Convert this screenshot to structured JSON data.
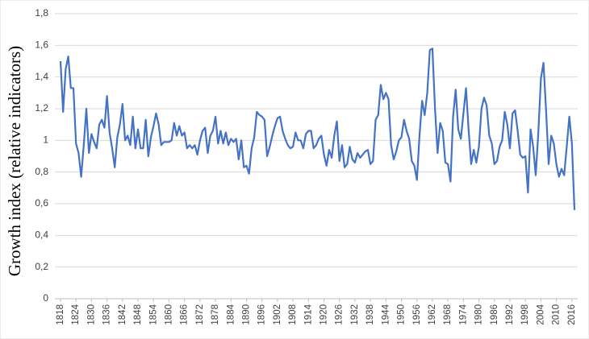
{
  "chart_data": {
    "type": "line",
    "y_label": "Growth index (relative indicators)",
    "x": [
      1818,
      1819,
      1820,
      1821,
      1822,
      1823,
      1824,
      1825,
      1826,
      1827,
      1828,
      1829,
      1830,
      1831,
      1832,
      1833,
      1834,
      1835,
      1836,
      1837,
      1838,
      1839,
      1840,
      1841,
      1842,
      1843,
      1844,
      1845,
      1846,
      1847,
      1848,
      1849,
      1850,
      1851,
      1852,
      1853,
      1854,
      1855,
      1856,
      1857,
      1858,
      1859,
      1860,
      1861,
      1862,
      1863,
      1864,
      1865,
      1866,
      1867,
      1868,
      1869,
      1870,
      1871,
      1872,
      1873,
      1874,
      1875,
      1876,
      1877,
      1878,
      1879,
      1880,
      1881,
      1882,
      1883,
      1884,
      1885,
      1886,
      1887,
      1888,
      1889,
      1890,
      1891,
      1892,
      1893,
      1894,
      1895,
      1896,
      1897,
      1898,
      1899,
      1900,
      1901,
      1902,
      1903,
      1904,
      1905,
      1906,
      1907,
      1908,
      1909,
      1910,
      1911,
      1912,
      1913,
      1914,
      1915,
      1916,
      1917,
      1918,
      1919,
      1920,
      1921,
      1922,
      1923,
      1924,
      1925,
      1926,
      1927,
      1928,
      1929,
      1930,
      1931,
      1932,
      1933,
      1934,
      1935,
      1936,
      1937,
      1938,
      1939,
      1940,
      1941,
      1942,
      1943,
      1944,
      1945,
      1946,
      1947,
      1948,
      1949,
      1950,
      1951,
      1952,
      1953,
      1954,
      1955,
      1956,
      1957,
      1958,
      1959,
      1960,
      1961,
      1962,
      1963,
      1964,
      1965,
      1966,
      1967,
      1968,
      1969,
      1970,
      1971,
      1972,
      1973,
      1974,
      1975,
      1976,
      1977,
      1978,
      1979,
      1980,
      1981,
      1982,
      1983,
      1984,
      1985,
      1986,
      1987,
      1988,
      1989,
      1990,
      1991,
      1992,
      1993,
      1994,
      1995,
      1996,
      1997,
      1998,
      1999,
      2000,
      2001,
      2002,
      2003,
      2004,
      2005,
      2006,
      2007,
      2008,
      2009,
      2010,
      2011,
      2012,
      2013,
      2014,
      2015,
      2016,
      2017
    ],
    "series": [
      {
        "name": "Growth index",
        "color": "#4472c4",
        "values": [
          1.5,
          1.18,
          1.45,
          1.53,
          1.33,
          1.33,
          0.98,
          0.92,
          0.77,
          0.97,
          1.2,
          0.92,
          1.04,
          0.99,
          0.95,
          1.1,
          1.13,
          1.08,
          1.28,
          1.05,
          0.95,
          0.83,
          1.02,
          1.1,
          1.23,
          1.0,
          1.03,
          0.97,
          1.15,
          0.95,
          1.07,
          0.95,
          0.95,
          1.13,
          0.9,
          1.02,
          1.09,
          1.17,
          1.1,
          0.97,
          0.99,
          0.99,
          0.99,
          1.0,
          1.11,
          1.03,
          1.09,
          1.03,
          1.05,
          0.95,
          0.97,
          0.95,
          0.97,
          0.91,
          1.0,
          1.06,
          1.08,
          0.92,
          1.03,
          1.06,
          1.15,
          0.98,
          1.06,
          0.98,
          1.05,
          0.97,
          1.01,
          0.99,
          1.01,
          0.88,
          1.0,
          0.83,
          0.84,
          0.79,
          0.95,
          1.02,
          1.18,
          1.16,
          1.15,
          1.13,
          0.9,
          0.96,
          1.03,
          1.09,
          1.14,
          1.15,
          1.06,
          1.01,
          0.97,
          0.95,
          0.96,
          1.05,
          1.0,
          1.0,
          0.95,
          1.04,
          1.06,
          1.06,
          0.95,
          0.97,
          1.01,
          1.03,
          0.91,
          0.84,
          0.94,
          0.89,
          1.03,
          1.12,
          0.87,
          0.97,
          0.83,
          0.85,
          0.96,
          0.88,
          0.86,
          0.92,
          0.89,
          0.91,
          0.93,
          0.94,
          0.85,
          0.87,
          1.13,
          1.16,
          1.35,
          1.26,
          1.3,
          1.26,
          0.97,
          0.88,
          0.93,
          1.0,
          1.02,
          1.13,
          1.06,
          1.01,
          0.87,
          0.84,
          0.75,
          1.03,
          1.25,
          1.16,
          1.3,
          1.57,
          1.58,
          1.2,
          0.92,
          1.11,
          1.06,
          0.86,
          0.85,
          0.74,
          1.15,
          1.32,
          1.07,
          1.01,
          1.17,
          1.33,
          1.07,
          0.85,
          0.94,
          0.86,
          0.96,
          1.2,
          1.27,
          1.22,
          1.03,
          0.98,
          0.85,
          0.87,
          0.96,
          1.0,
          1.18,
          1.1,
          0.95,
          1.17,
          1.19,
          1.06,
          0.91,
          0.89,
          0.9,
          0.67,
          1.07,
          0.96,
          0.78,
          1.05,
          1.39,
          1.49,
          1.19,
          0.85,
          1.03,
          0.98,
          0.85,
          0.77,
          0.82,
          0.78,
          0.96,
          1.15,
          0.98,
          0.56
        ]
      }
    ],
    "xlim": [
      1818,
      2017
    ],
    "xticks": [
      1818,
      1824,
      1830,
      1836,
      1842,
      1848,
      1854,
      1860,
      1866,
      1872,
      1878,
      1884,
      1890,
      1896,
      1902,
      1908,
      1914,
      1920,
      1926,
      1932,
      1938,
      1944,
      1950,
      1956,
      1962,
      1968,
      1974,
      1980,
      1986,
      1992,
      1998,
      2004,
      2010,
      2016
    ],
    "ylim": [
      0,
      1.8
    ],
    "yticks": [
      0,
      {
        "value": 0.2,
        "label": "0,2"
      },
      {
        "value": 0.4,
        "label": "0,4"
      },
      {
        "value": 0.6,
        "label": "0,6"
      },
      {
        "value": 0.8,
        "label": "0,8"
      },
      1,
      {
        "value": 1.2,
        "label": "1,2"
      },
      {
        "value": 1.4,
        "label": "1,4"
      },
      {
        "value": 1.6,
        "label": "1,6"
      },
      {
        "value": 1.8,
        "label": "1,8"
      }
    ],
    "grid": true
  }
}
